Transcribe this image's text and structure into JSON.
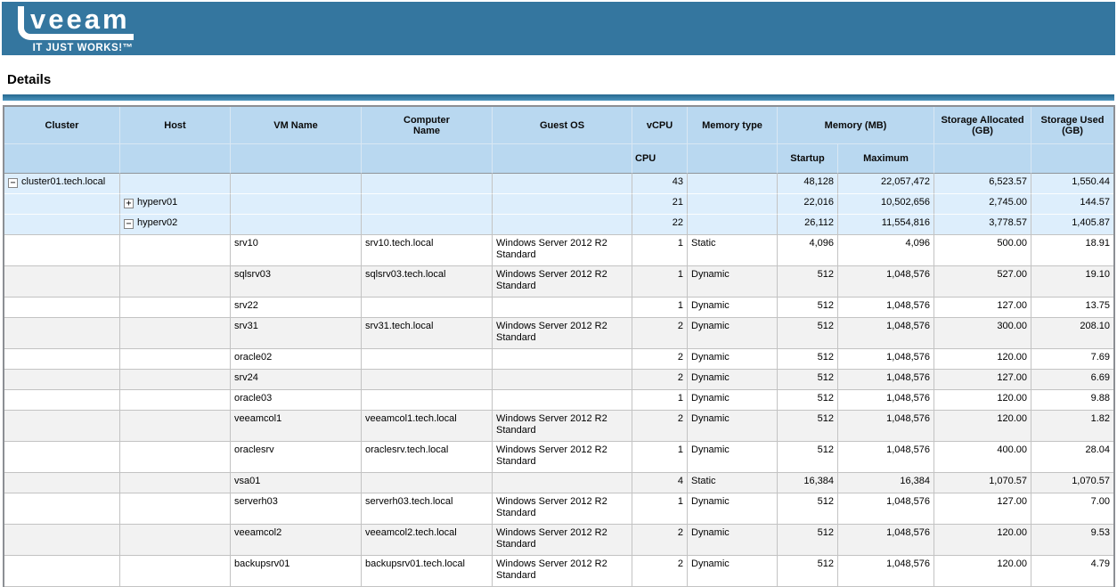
{
  "banner": {
    "logo_text": "veeam",
    "tagline": "IT JUST WORKS!™",
    "background_color": "#34769f"
  },
  "page": {
    "title": "Details"
  },
  "colors": {
    "header_blue": "#b9d8f0",
    "tree_row_blue": "#ddeefc",
    "alt_row_gray": "#f2f2f2",
    "rule_blue": "#34769f"
  },
  "table": {
    "headers": {
      "cluster": "Cluster",
      "host": "Host",
      "vm_name": "VM Name",
      "computer_name": "Computer Name",
      "guest_os": "Guest OS",
      "vcpu": "vCPU",
      "memory_type": "Memory type",
      "memory_mb": "Memory (MB)",
      "storage_allocated": "Storage Allocated (GB)",
      "storage_used": "Storage Used (GB)",
      "sub_cpu": "CPU",
      "sub_startup": "Startup",
      "sub_maximum": "Maximum"
    },
    "rows": [
      {
        "level": "cluster",
        "icon": "minus",
        "cluster": "cluster01.tech.local",
        "host": "",
        "vm_name": "",
        "computer_name": "",
        "guest_os": "",
        "vcpu": "43",
        "memory_type": "",
        "startup": "48,128",
        "maximum": "22,057,472",
        "storage_allocated": "6,523.57",
        "storage_used": "1,550.44"
      },
      {
        "level": "host",
        "icon": "plus",
        "cluster": "",
        "host": "hyperv01",
        "vm_name": "",
        "computer_name": "",
        "guest_os": "",
        "vcpu": "21",
        "memory_type": "",
        "startup": "22,016",
        "maximum": "10,502,656",
        "storage_allocated": "2,745.00",
        "storage_used": "144.57"
      },
      {
        "level": "host",
        "icon": "minus",
        "cluster": "",
        "host": "hyperv02",
        "vm_name": "",
        "computer_name": "",
        "guest_os": "",
        "vcpu": "22",
        "memory_type": "",
        "startup": "26,112",
        "maximum": "11,554,816",
        "storage_allocated": "3,778.57",
        "storage_used": "1,405.87"
      },
      {
        "level": "vm",
        "cluster": "",
        "host": "",
        "vm_name": "srv10",
        "computer_name": "srv10.tech.local",
        "guest_os": "Windows Server 2012 R2 Standard",
        "vcpu": "1",
        "memory_type": "Static",
        "startup": "4,096",
        "maximum": "4,096",
        "storage_allocated": "500.00",
        "storage_used": "18.91"
      },
      {
        "level": "vm",
        "cluster": "",
        "host": "",
        "vm_name": "sqlsrv03",
        "computer_name": "sqlsrv03.tech.local",
        "guest_os": "Windows Server 2012 R2 Standard",
        "vcpu": "1",
        "memory_type": "Dynamic",
        "startup": "512",
        "maximum": "1,048,576",
        "storage_allocated": "527.00",
        "storage_used": "19.10"
      },
      {
        "level": "vm",
        "cluster": "",
        "host": "",
        "vm_name": "srv22",
        "computer_name": "",
        "guest_os": "",
        "vcpu": "1",
        "memory_type": "Dynamic",
        "startup": "512",
        "maximum": "1,048,576",
        "storage_allocated": "127.00",
        "storage_used": "13.75"
      },
      {
        "level": "vm",
        "cluster": "",
        "host": "",
        "vm_name": "srv31",
        "computer_name": "srv31.tech.local",
        "guest_os": "Windows Server 2012 R2 Standard",
        "vcpu": "2",
        "memory_type": "Dynamic",
        "startup": "512",
        "maximum": "1,048,576",
        "storage_allocated": "300.00",
        "storage_used": "208.10"
      },
      {
        "level": "vm",
        "cluster": "",
        "host": "",
        "vm_name": "oracle02",
        "computer_name": "",
        "guest_os": "",
        "vcpu": "2",
        "memory_type": "Dynamic",
        "startup": "512",
        "maximum": "1,048,576",
        "storage_allocated": "120.00",
        "storage_used": "7.69"
      },
      {
        "level": "vm",
        "cluster": "",
        "host": "",
        "vm_name": "srv24",
        "computer_name": "",
        "guest_os": "",
        "vcpu": "2",
        "memory_type": "Dynamic",
        "startup": "512",
        "maximum": "1,048,576",
        "storage_allocated": "127.00",
        "storage_used": "6.69"
      },
      {
        "level": "vm",
        "cluster": "",
        "host": "",
        "vm_name": "oracle03",
        "computer_name": "",
        "guest_os": "",
        "vcpu": "1",
        "memory_type": "Dynamic",
        "startup": "512",
        "maximum": "1,048,576",
        "storage_allocated": "120.00",
        "storage_used": "9.88"
      },
      {
        "level": "vm",
        "cluster": "",
        "host": "",
        "vm_name": "veeamcol1",
        "computer_name": "veeamcol1.tech.local",
        "guest_os": "Windows Server 2012 R2 Standard",
        "vcpu": "2",
        "memory_type": "Dynamic",
        "startup": "512",
        "maximum": "1,048,576",
        "storage_allocated": "120.00",
        "storage_used": "1.82"
      },
      {
        "level": "vm",
        "cluster": "",
        "host": "",
        "vm_name": "oraclesrv",
        "computer_name": "oraclesrv.tech.local",
        "guest_os": "Windows Server 2012 R2 Standard",
        "vcpu": "1",
        "memory_type": "Dynamic",
        "startup": "512",
        "maximum": "1,048,576",
        "storage_allocated": "400.00",
        "storage_used": "28.04"
      },
      {
        "level": "vm",
        "cluster": "",
        "host": "",
        "vm_name": "vsa01",
        "computer_name": "",
        "guest_os": "",
        "vcpu": "4",
        "memory_type": "Static",
        "startup": "16,384",
        "maximum": "16,384",
        "storage_allocated": "1,070.57",
        "storage_used": "1,070.57"
      },
      {
        "level": "vm",
        "cluster": "",
        "host": "",
        "vm_name": "serverh03",
        "computer_name": "serverh03.tech.local",
        "guest_os": "Windows Server 2012 R2 Standard",
        "vcpu": "1",
        "memory_type": "Dynamic",
        "startup": "512",
        "maximum": "1,048,576",
        "storage_allocated": "127.00",
        "storage_used": "7.00"
      },
      {
        "level": "vm",
        "cluster": "",
        "host": "",
        "vm_name": "veeamcol2",
        "computer_name": "veeamcol2.tech.local",
        "guest_os": "Windows Server 2012 R2 Standard",
        "vcpu": "2",
        "memory_type": "Dynamic",
        "startup": "512",
        "maximum": "1,048,576",
        "storage_allocated": "120.00",
        "storage_used": "9.53"
      },
      {
        "level": "vm",
        "cluster": "",
        "host": "",
        "vm_name": "backupsrv01",
        "computer_name": "backupsrv01.tech.local",
        "guest_os": "Windows Server 2012 R2 Standard",
        "vcpu": "2",
        "memory_type": "Dynamic",
        "startup": "512",
        "maximum": "1,048,576",
        "storage_allocated": "120.00",
        "storage_used": "4.79"
      }
    ]
  }
}
